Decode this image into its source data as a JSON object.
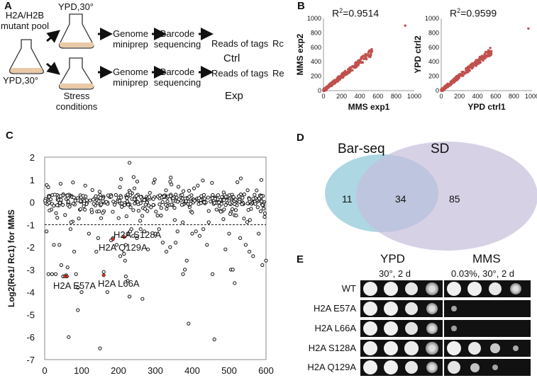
{
  "figure": {
    "panel_labels": [
      "A",
      "B",
      "C",
      "D",
      "E"
    ]
  },
  "panel_a": {
    "pool_label": "H2A/H2B\nmutant pool",
    "start_condition": "YPD,30°",
    "top_condition": "YPD,30°",
    "bottom_condition": "Stress\nconditions",
    "step1": "Genome\nminiprep",
    "step2": "Barcode\nsequencing",
    "step3": "Reads of tags",
    "ctrl_tag": "Rc",
    "exp_tag": "Re",
    "ctrl_label": "Ctrl",
    "exp_label": "Exp"
  },
  "chart_data": [
    {
      "id": "B-left",
      "type": "scatter",
      "title": "R²=0.9514",
      "r2_prefix": "R",
      "r2_sup": "2",
      "r2_value": "=0.9514",
      "xlabel": "MMS exp1",
      "ylabel": "MMS exp2",
      "xlim": [
        0,
        1000
      ],
      "ylim": [
        0,
        1000
      ],
      "xticks": [
        "0",
        "200",
        "400",
        "600",
        "800",
        "1000"
      ],
      "yticks": [
        "0",
        "200",
        "400",
        "600",
        "800",
        "1000"
      ],
      "color": "#c0504d",
      "outlier": [
        900,
        900
      ]
    },
    {
      "id": "B-right",
      "type": "scatter",
      "title": "R²=0.9599",
      "r2_prefix": "R",
      "r2_sup": "2",
      "r2_value": "=0.9599",
      "xlabel": "YPD ctrl1",
      "ylabel": "YPD ctrl2",
      "xlim": [
        0,
        1000
      ],
      "ylim": [
        0,
        1000
      ],
      "xticks": [
        "0",
        "200",
        "400",
        "600",
        "800",
        "1000"
      ],
      "yticks": [
        "0",
        "200",
        "400",
        "600",
        "800",
        "1000"
      ],
      "color": "#c0504d",
      "outlier": [
        960,
        860
      ]
    },
    {
      "id": "C",
      "type": "scatter",
      "ylabel": "Log2(Re1/ Rc1) for MMS",
      "xlim": [
        0,
        600
      ],
      "ylim": [
        -7,
        2
      ],
      "xticks": [
        "0",
        "100",
        "200",
        "300",
        "400",
        "500",
        "600"
      ],
      "yticks": [
        "2",
        "1",
        "0",
        "-1",
        "-2",
        "-3",
        "-4",
        "-5",
        "-6",
        "-7"
      ],
      "threshold": -1,
      "highlight_color": "#e03020",
      "annotations": [
        {
          "label": "H2A E57A",
          "x": 55,
          "y": -3.3
        },
        {
          "label": "H2A L66A",
          "x": 160,
          "y": -3.3
        },
        {
          "label": "H2A Q129A",
          "x": 185,
          "y": -1.65
        },
        {
          "label": "H2A S128A",
          "x": 215,
          "y": -1.55
        }
      ],
      "low_points": [
        [
          5,
          -1.3
        ],
        [
          10,
          -3.2
        ],
        [
          20,
          -3.2
        ],
        [
          30,
          -3.2
        ],
        [
          50,
          -3.3
        ],
        [
          60,
          -3.3
        ],
        [
          58,
          -3.25
        ],
        [
          62,
          -2.9
        ],
        [
          40,
          -1.9
        ],
        [
          25,
          -1.9
        ],
        [
          45,
          -2.8
        ],
        [
          70,
          -1.2
        ],
        [
          80,
          -2.2
        ],
        [
          85,
          -3.2
        ],
        [
          90,
          -3.8
        ],
        [
          100,
          -4.0
        ],
        [
          90,
          -4.8
        ],
        [
          65,
          -6.0
        ],
        [
          150,
          -6.5
        ],
        [
          160,
          -3.1
        ],
        [
          170,
          -4.0
        ],
        [
          140,
          -2.2
        ],
        [
          145,
          -1.6
        ],
        [
          120,
          -1.4
        ],
        [
          180,
          -1.7
        ],
        [
          185,
          -1.6
        ],
        [
          195,
          -1.9
        ],
        [
          205,
          -2.4
        ],
        [
          215,
          -2.3
        ],
        [
          218,
          -2.6
        ],
        [
          225,
          -1.4
        ],
        [
          232,
          -1.3
        ],
        [
          240,
          -1.5
        ],
        [
          220,
          -3.3
        ],
        [
          225,
          -3.5
        ],
        [
          230,
          -4.2
        ],
        [
          235,
          -1.2
        ],
        [
          250,
          -1.6
        ],
        [
          265,
          -4.3
        ],
        [
          270,
          -1.3
        ],
        [
          280,
          -2.1
        ],
        [
          300,
          -1.4
        ],
        [
          310,
          -1.2
        ],
        [
          320,
          -1.8
        ],
        [
          330,
          -2.2
        ],
        [
          340,
          -2.0
        ],
        [
          355,
          -1.8
        ],
        [
          360,
          -1.3
        ],
        [
          375,
          -3.2
        ],
        [
          380,
          -3.0
        ],
        [
          385,
          -2.6
        ],
        [
          390,
          -5.4
        ],
        [
          400,
          -1.4
        ],
        [
          410,
          -1.3
        ],
        [
          420,
          -1.5
        ],
        [
          430,
          -1.2
        ],
        [
          440,
          -1.9
        ],
        [
          455,
          -3.2
        ],
        [
          460,
          -6.1
        ],
        [
          490,
          -2.1
        ],
        [
          500,
          -1.4
        ],
        [
          505,
          -3.0
        ],
        [
          510,
          -3.0
        ],
        [
          515,
          -3.6
        ],
        [
          530,
          -1.6
        ],
        [
          545,
          -1.9
        ],
        [
          555,
          -2.2
        ],
        [
          565,
          -2.4
        ],
        [
          580,
          -1.4
        ],
        [
          590,
          -2.8
        ],
        [
          600,
          -2.6
        ],
        [
          220,
          -1.9
        ],
        [
          260,
          -1.2
        ],
        [
          230,
          1.75
        ]
      ],
      "highlighted": [
        [
          55,
          -3.3
        ],
        [
          60,
          -3.3
        ],
        [
          160,
          -3.25
        ],
        [
          185,
          -1.65
        ],
        [
          215,
          -1.55
        ]
      ]
    }
  ],
  "panel_d": {
    "left_title": "Bar-seq",
    "right_title": "SD",
    "left_only": "11",
    "overlap": "34",
    "right_only": "85"
  },
  "panel_e": {
    "ypd_title": "YPD",
    "ypd_condition": "30°, 2 d",
    "mms_title": "MMS",
    "mms_condition": "0.03%, 30°, 2 d",
    "strains": [
      "WT",
      "H2A E57A",
      "H2A L66A",
      "H2A S128A",
      "H2A Q129A"
    ],
    "growth_ypd": [
      [
        1,
        1,
        0.9,
        0.8
      ],
      [
        1,
        1,
        0.9,
        0.75
      ],
      [
        1,
        1,
        0.85,
        0.7
      ],
      [
        1,
        1,
        0.95,
        0.8
      ],
      [
        1,
        1,
        0.9,
        0.75
      ]
    ],
    "growth_mms": [
      [
        1,
        1,
        0.9,
        0.75
      ],
      [
        0.15,
        0,
        0,
        0
      ],
      [
        0.1,
        0,
        0,
        0
      ],
      [
        1,
        0.9,
        0.55,
        0.2
      ],
      [
        0.85,
        0.5,
        0.15,
        0
      ]
    ]
  }
}
